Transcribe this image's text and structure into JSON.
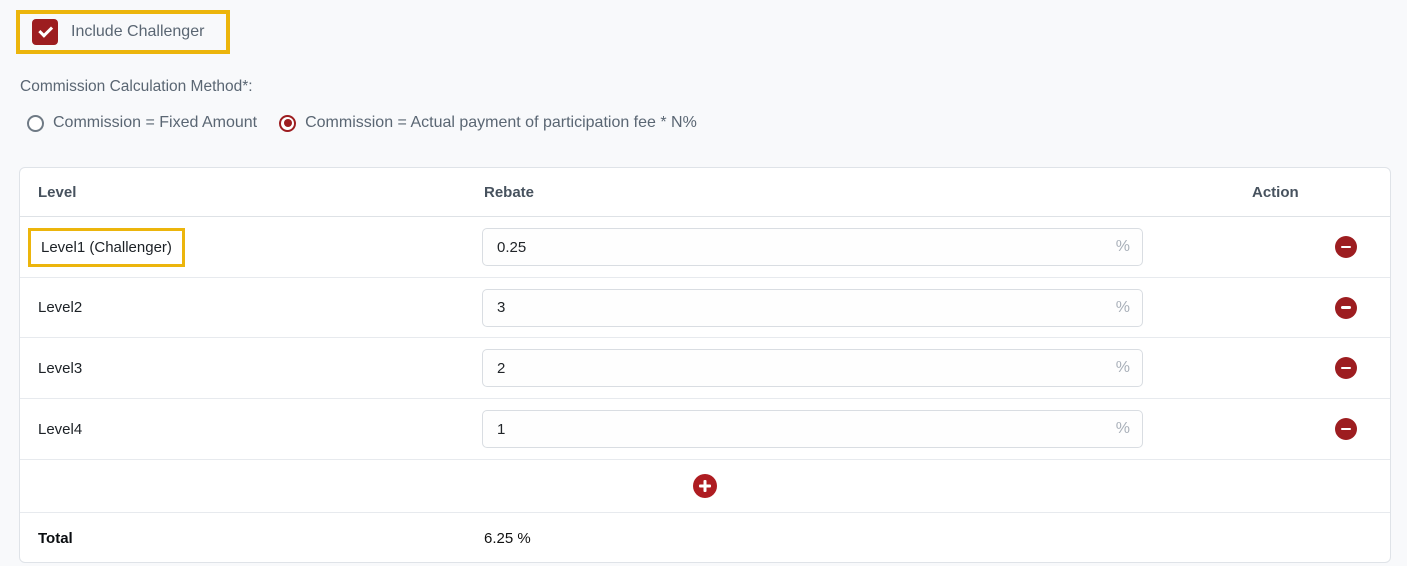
{
  "colors": {
    "accent_red": "#9d1d20",
    "plus_red": "#ae1c21",
    "highlight_yellow": "#ecb50c",
    "label_gray": "#5a6673",
    "page_background": "#f8f9fb"
  },
  "challenger_checkbox": {
    "label": "Include Challenger",
    "checked": true,
    "highlighted": true
  },
  "commission_method": {
    "label": "Commission Calculation Method*:",
    "options": [
      {
        "label": "Commission = Fixed Amount",
        "selected": false
      },
      {
        "label": "Commission = Actual payment of participation fee * N%",
        "selected": true
      }
    ]
  },
  "rebate_table": {
    "columns": {
      "level": "Level",
      "rebate": "Rebate",
      "action": "Action"
    },
    "rows": [
      {
        "level": "Level1 (Challenger)",
        "rebate_value": "0.25",
        "unit": "%",
        "highlighted": true
      },
      {
        "level": "Level2",
        "rebate_value": "3",
        "unit": "%",
        "highlighted": false
      },
      {
        "level": "Level3",
        "rebate_value": "2",
        "unit": "%",
        "highlighted": false
      },
      {
        "level": "Level4",
        "rebate_value": "1",
        "unit": "%",
        "highlighted": false
      }
    ],
    "total": {
      "label": "Total",
      "value": "6.25 %"
    }
  },
  "icons": {
    "checkbox_check": "check-icon",
    "remove_row": "minus-circle-icon",
    "add_row": "plus-circle-icon"
  }
}
